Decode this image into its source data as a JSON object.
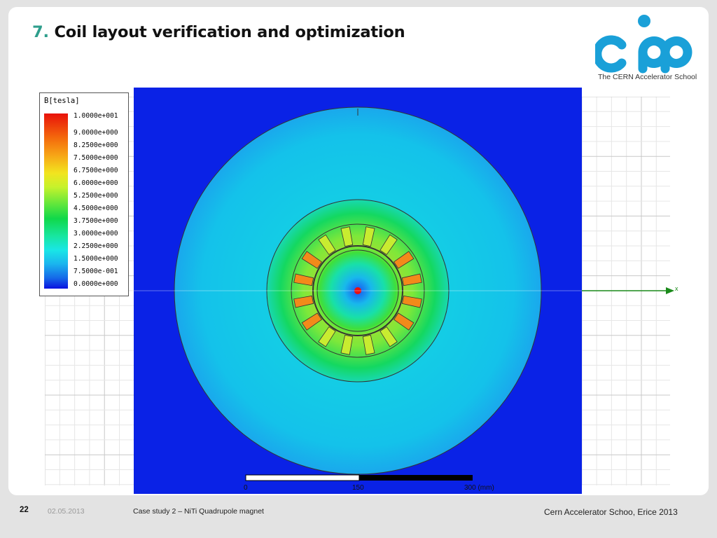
{
  "slide": {
    "title_number": "7.",
    "title_text": " Coil layout verification and optimization",
    "logo_caption": "The CERN Accelerator School"
  },
  "legend": {
    "title": "B[tesla]",
    "labels": [
      "1.0000e+001",
      "9.0000e+000",
      "8.2500e+000",
      "7.5000e+000",
      "6.7500e+000",
      "6.0000e+000",
      "5.2500e+000",
      "4.5000e+000",
      "3.7500e+000",
      "3.0000e+000",
      "2.2500e+000",
      "1.5000e+000",
      "7.5000e-001",
      "0.0000e+000"
    ],
    "colors": [
      "#e8120a",
      "#f46a0c",
      "#f7a616",
      "#f2e41f",
      "#c6f22c",
      "#5ee63c",
      "#10d84a",
      "#18e6a0",
      "#19e6e6",
      "#1ab4ee",
      "#1568e8",
      "#0a12e0"
    ]
  },
  "plot": {
    "scale_labels": [
      "0",
      "150",
      "300 (mm)"
    ],
    "axis_label": "x",
    "background_color": "#0a22e6",
    "field_color": "#14c4e6"
  },
  "footer": {
    "page": "22",
    "date": "02.05.2013",
    "center": "Case study 2 – NiTi Quadrupole magnet",
    "right": "Cern Accelerator Schoo, Erice 2013"
  }
}
